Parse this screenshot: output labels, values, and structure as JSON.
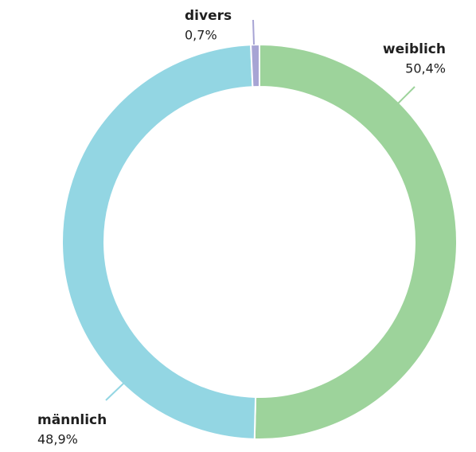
{
  "chart_data": {
    "type": "pie",
    "donut": true,
    "categories": [
      "weiblich",
      "männlich",
      "divers"
    ],
    "values": [
      50.4,
      48.9,
      0.7
    ],
    "value_labels": [
      "50,4%",
      "48,9%",
      "0,7%"
    ],
    "colors": [
      "#9dd39b",
      "#93d6e3",
      "#a7a4d4"
    ]
  }
}
